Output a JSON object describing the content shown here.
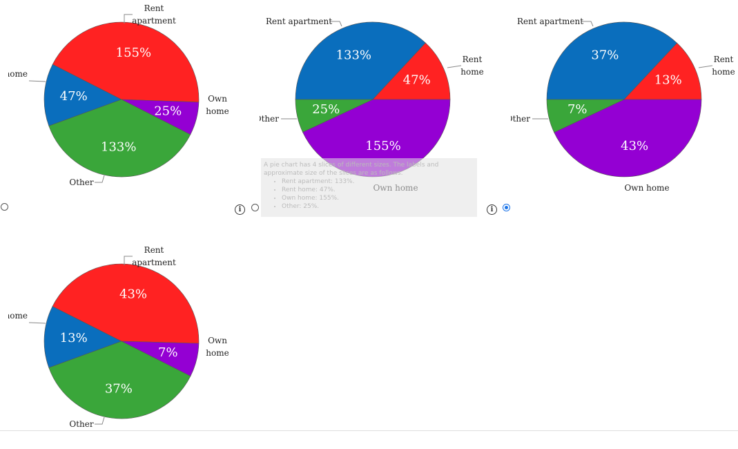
{
  "chart_data": [
    {
      "type": "pie",
      "categories": [
        "Rent apartment",
        "Rent home",
        "Own home",
        "Other"
      ],
      "values": [
        155,
        47,
        25,
        133
      ],
      "value_labels": [
        "155%",
        "47%",
        "25%",
        "133%"
      ],
      "colors": [
        "#ff2222",
        "#0a6ebd",
        "#9400d3",
        "#3aa63a"
      ]
    },
    {
      "type": "pie",
      "categories": [
        "Rent apartment",
        "Rent home",
        "Own home",
        "Other"
      ],
      "values": [
        133,
        47,
        155,
        25
      ],
      "value_labels": [
        "133%",
        "47%",
        "155%",
        "25%"
      ],
      "colors": [
        "#0a6ebd",
        "#ff2222",
        "#9400d3",
        "#3aa63a"
      ]
    },
    {
      "type": "pie",
      "categories": [
        "Rent apartment",
        "Rent home",
        "Own home",
        "Other"
      ],
      "values": [
        37,
        13,
        43,
        7
      ],
      "value_labels": [
        "37%",
        "13%",
        "43%",
        "7%"
      ],
      "colors": [
        "#0a6ebd",
        "#ff2222",
        "#9400d3",
        "#3aa63a"
      ]
    },
    {
      "type": "pie",
      "categories": [
        "Rent apartment",
        "Rent home",
        "Own home",
        "Other"
      ],
      "values": [
        43,
        13,
        7,
        37
      ],
      "value_labels": [
        "43%",
        "13%",
        "7%",
        "37%"
      ],
      "colors": [
        "#ff2222",
        "#0a6ebd",
        "#9400d3",
        "#3aa63a"
      ]
    }
  ],
  "tooltip": {
    "text": "A pie chart has 4 slices of different sizes. The labels and approximate size of the slices are as follows.",
    "items": [
      "Rent apartment: 133%.",
      "Rent home: 47%.",
      "Own home: 155%.",
      "Other: 25%."
    ]
  }
}
